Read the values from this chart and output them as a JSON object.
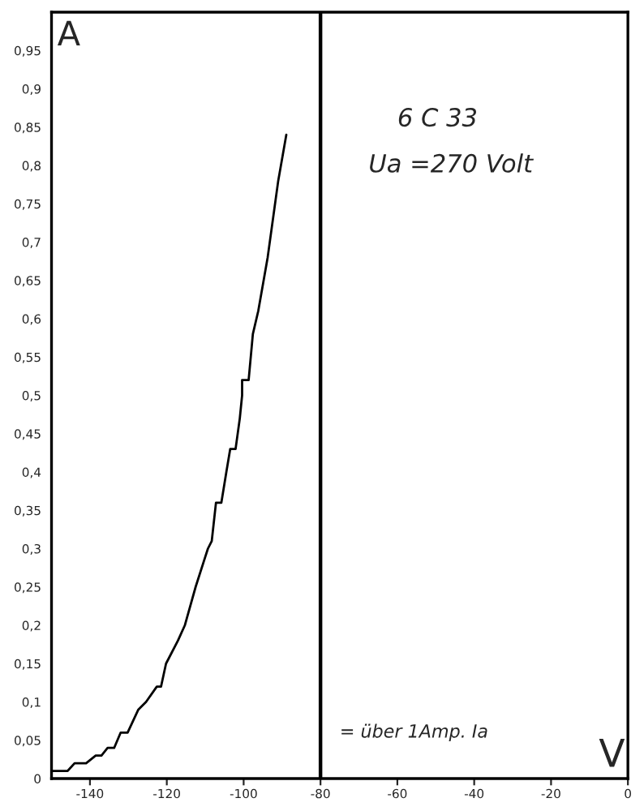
{
  "chart_data": {
    "type": "line",
    "xlabel": "V",
    "ylabel": "A",
    "x": [
      -150,
      -145.8,
      -144,
      -141,
      -138.5,
      -137,
      -135.4,
      -133.7,
      -132,
      -130.2,
      -127.4,
      -125.4,
      -122.6,
      -121.5,
      -120.2,
      -117.1,
      -115.3,
      -112.5,
      -109.3,
      -108.3,
      -107.2,
      -105.8,
      -104.5,
      -103.5,
      -102.1,
      -101,
      -100.4,
      -100.4,
      -98.7,
      -97.6,
      -96.2,
      -93.75,
      -91,
      -88.9
    ],
    "series": [
      {
        "color": "#000000",
        "values": [
          0.01,
          0.01,
          0.02,
          0.02,
          0.03,
          0.03,
          0.04,
          0.04,
          0.06,
          0.06,
          0.09,
          0.1,
          0.12,
          0.12,
          0.15,
          0.18,
          0.2,
          0.25,
          0.3,
          0.31,
          0.36,
          0.36,
          0.4,
          0.43,
          0.43,
          0.47,
          0.5,
          0.52,
          0.52,
          0.58,
          0.61,
          0.68,
          0.78,
          0.84
        ]
      }
    ],
    "xlim": [
      -150,
      0
    ],
    "ylim": [
      0,
      1.0
    ],
    "xticks": [
      -140,
      -120,
      -100,
      -80,
      -60,
      -40,
      -20,
      0
    ],
    "yticks": [
      0,
      {
        "value": 0.05,
        "label": "0,05"
      },
      {
        "value": 0.1,
        "label": "0,1"
      },
      {
        "value": 0.15,
        "label": "0,15"
      },
      {
        "value": 0.2,
        "label": "0,2"
      },
      {
        "value": 0.25,
        "label": "0,25"
      },
      {
        "value": 0.3,
        "label": "0,3"
      },
      {
        "value": 0.35,
        "label": "0,35"
      },
      {
        "value": 0.4,
        "label": "0,4"
      },
      {
        "value": 0.45,
        "label": "0,45"
      },
      {
        "value": 0.5,
        "label": "0,5"
      },
      {
        "value": 0.55,
        "label": "0,55"
      },
      {
        "value": 0.6,
        "label": "0,6"
      },
      {
        "value": 0.65,
        "label": "0,65"
      },
      {
        "value": 0.7,
        "label": "0,7"
      },
      {
        "value": 0.75,
        "label": "0,75"
      },
      {
        "value": 0.8,
        "label": "0,8"
      },
      {
        "value": 0.85,
        "label": "0,85"
      },
      {
        "value": 0.9,
        "label": "0,9"
      },
      {
        "value": 0.95,
        "label": "0,95"
      }
    ],
    "ref_lines": [
      {
        "axis": "x",
        "value": -80,
        "color": "#000000"
      }
    ],
    "annotations": [
      "6 C 33",
      "Ua =270 Volt",
      "= über 1Amp. Ia"
    ],
    "grid": false,
    "legend": false
  }
}
